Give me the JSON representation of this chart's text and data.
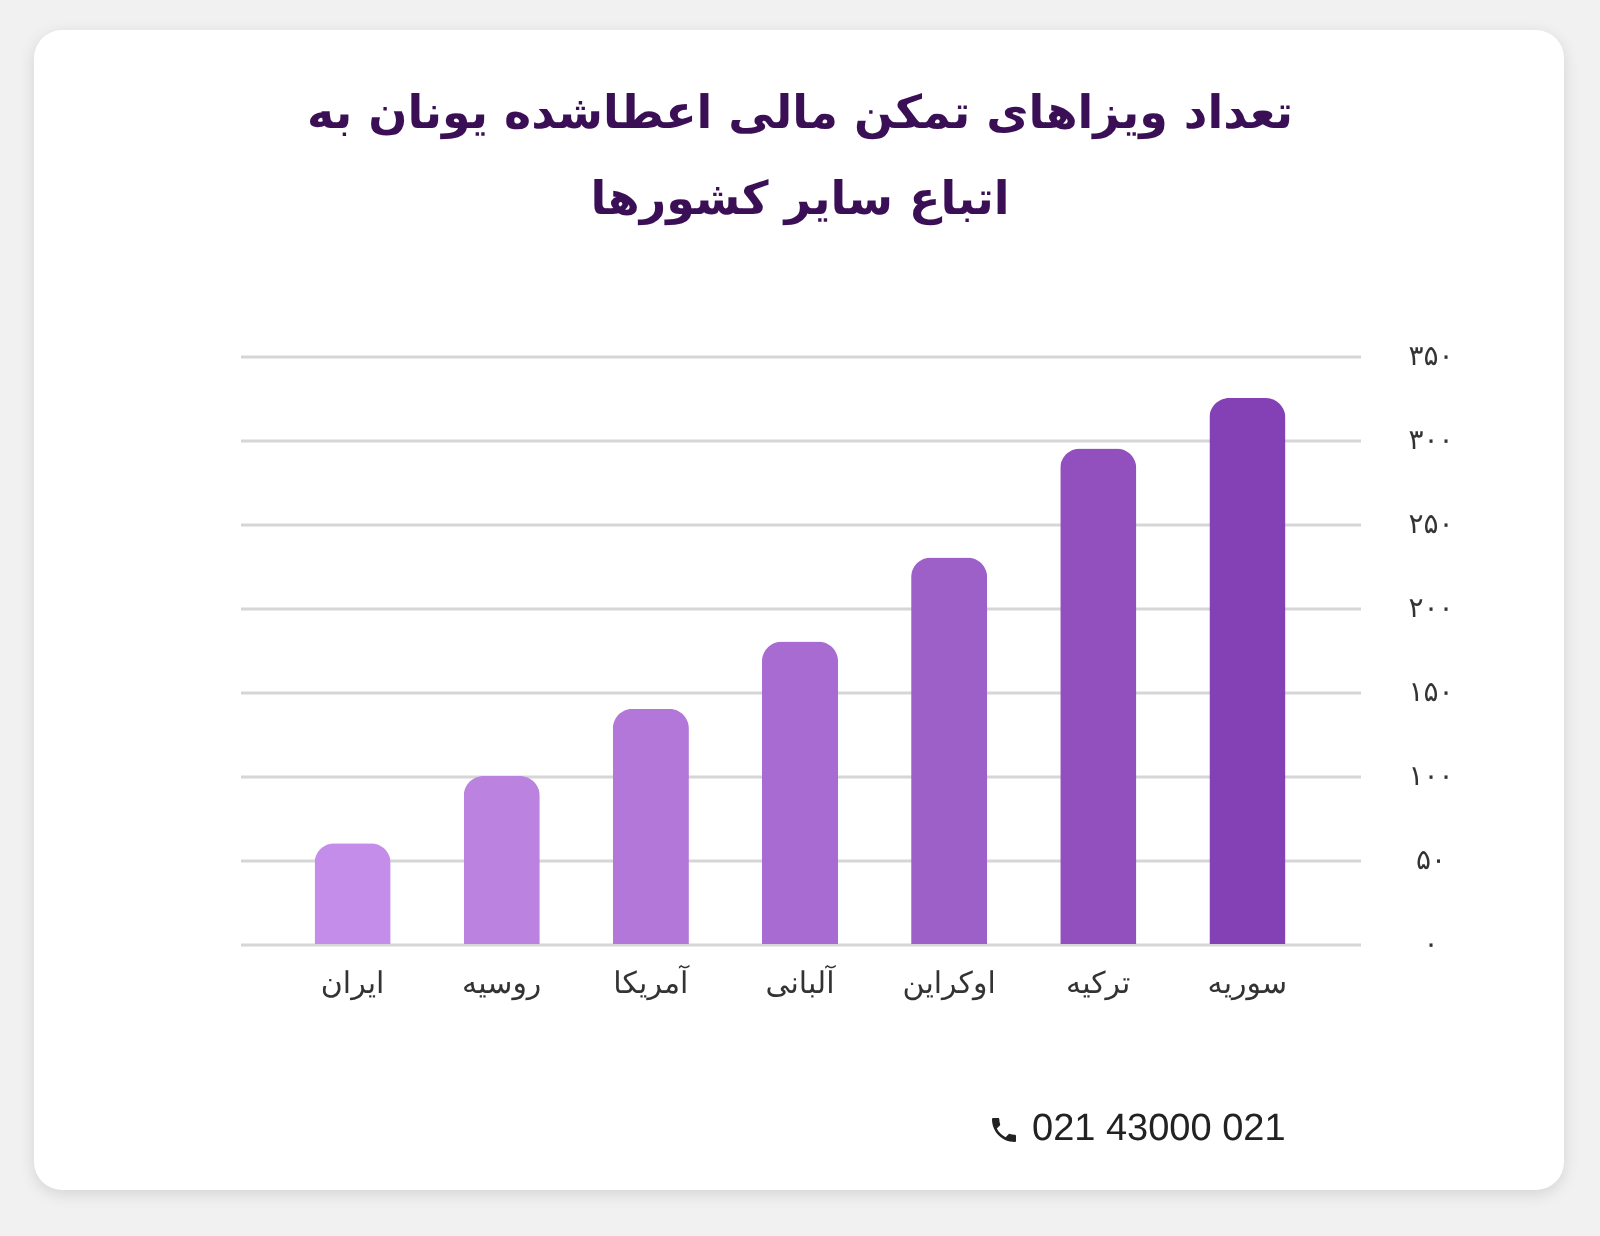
{
  "chart_data": {
    "type": "bar",
    "title": "تعداد ویزاهای تمکن مالی اعطاشده یونان به اتباع سایر کشورها",
    "categories": [
      "ایران",
      "روسیه",
      "آمریکا",
      "آلبانی",
      "اوکراین",
      "ترکیه",
      "سوریه"
    ],
    "values": [
      60,
      100,
      140,
      180,
      230,
      295,
      325
    ],
    "colors": [
      "#c48de9",
      "#bb82e0",
      "#b277d9",
      "#a86bd1",
      "#9d5fc8",
      "#9250bf",
      "#8441b5"
    ],
    "ylim": [
      0,
      350
    ],
    "yticks": [
      {
        "value": 0,
        "label": "۰"
      },
      {
        "value": 50,
        "label": "۵۰"
      },
      {
        "value": 100,
        "label": "۱۰۰"
      },
      {
        "value": 150,
        "label": "۱۵۰"
      },
      {
        "value": 200,
        "label": "۲۰۰"
      },
      {
        "value": 250,
        "label": "۲۵۰"
      },
      {
        "value": 300,
        "label": "۳۰۰"
      },
      {
        "value": 350,
        "label": "۳۵۰"
      }
    ],
    "grid": "y",
    "annotations": [
      "021 43000 021"
    ]
  }
}
